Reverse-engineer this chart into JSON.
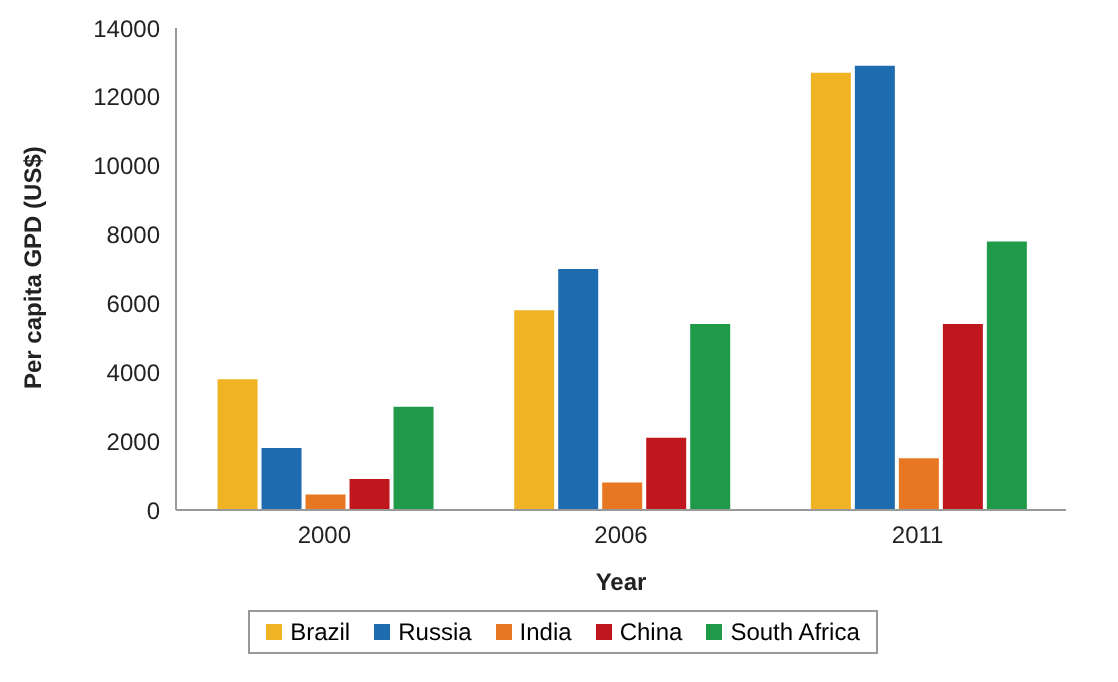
{
  "chart_data": {
    "type": "bar",
    "xlabel": "Year",
    "ylabel": "Per capita GPD (US$)",
    "categories": [
      "2000",
      "2006",
      "2011"
    ],
    "series": [
      {
        "name": "Brazil",
        "color": "#f0b323",
        "values": [
          3800,
          5800,
          12700
        ]
      },
      {
        "name": "Russia",
        "color": "#1f6bb0",
        "values": [
          1800,
          7000,
          12900
        ]
      },
      {
        "name": "India",
        "color": "#e87722",
        "values": [
          450,
          800,
          1500
        ]
      },
      {
        "name": "China",
        "color": "#c0161e",
        "values": [
          900,
          2100,
          5400
        ]
      },
      {
        "name": "South Africa",
        "color": "#1e9a48",
        "values": [
          3000,
          5400,
          7800
        ]
      }
    ],
    "ylim": [
      0,
      14000
    ],
    "yticks": [
      0,
      2000,
      4000,
      6000,
      8000,
      10000,
      12000,
      14000
    ],
    "grid": false,
    "legend": "bottom"
  }
}
